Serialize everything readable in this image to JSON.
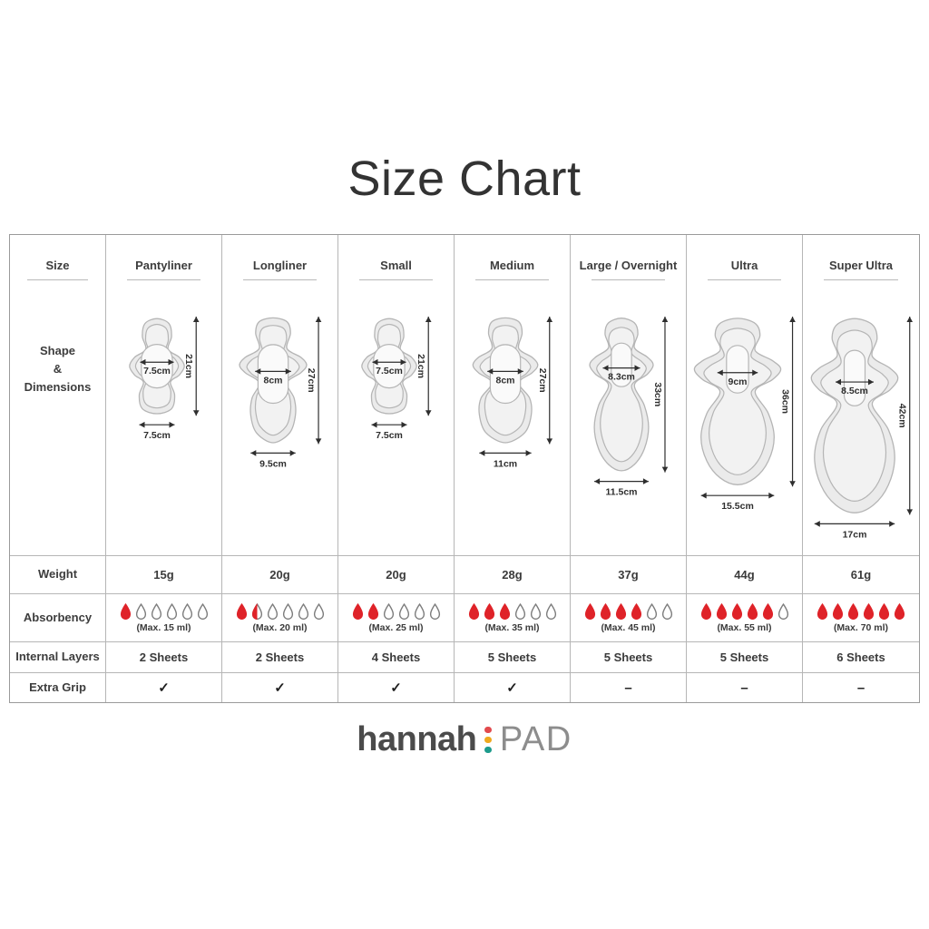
{
  "title": "Size Chart",
  "row_headers": {
    "size": "Size",
    "shape_line1": "Shape",
    "shape_line2": "&",
    "shape_line3": "Dimensions",
    "weight": "Weight",
    "absorbency": "Absorbency",
    "internal_layers": "Internal Layers",
    "extra_grip": "Extra Grip"
  },
  "drops_total": 6,
  "columns": [
    {
      "name": "Pantyliner",
      "core_width": "7.5cm",
      "length": "21cm",
      "bottom_width": "7.5cm",
      "weight": "15g",
      "drops_full": 1,
      "drops_half": 0,
      "absorbency_note": "(Max. 15 ml)",
      "internal_layers": "2 Sheets",
      "extra_grip": "✓"
    },
    {
      "name": "Longliner",
      "core_width": "8cm",
      "length": "27cm",
      "bottom_width": "9.5cm",
      "weight": "20g",
      "drops_full": 1,
      "drops_half": 1,
      "absorbency_note": "(Max. 20 ml)",
      "internal_layers": "2 Sheets",
      "extra_grip": "✓"
    },
    {
      "name": "Small",
      "core_width": "7.5cm",
      "length": "21cm",
      "bottom_width": "7.5cm",
      "weight": "20g",
      "drops_full": 2,
      "drops_half": 0,
      "absorbency_note": "(Max. 25 ml)",
      "internal_layers": "4 Sheets",
      "extra_grip": "✓"
    },
    {
      "name": "Medium",
      "core_width": "8cm",
      "length": "27cm",
      "bottom_width": "11cm",
      "weight": "28g",
      "drops_full": 3,
      "drops_half": 0,
      "absorbency_note": "(Max. 35 ml)",
      "internal_layers": "5 Sheets",
      "extra_grip": "✓"
    },
    {
      "name": "Large / Overnight",
      "core_width": "8.3cm",
      "length": "33cm",
      "bottom_width": "11.5cm",
      "weight": "37g",
      "drops_full": 4,
      "drops_half": 0,
      "absorbency_note": "(Max. 45 ml)",
      "internal_layers": "5 Sheets",
      "extra_grip": "–"
    },
    {
      "name": "Ultra",
      "core_width": "9cm",
      "length": "36cm",
      "bottom_width": "15.5cm",
      "weight": "44g",
      "drops_full": 5,
      "drops_half": 0,
      "absorbency_note": "(Max. 55 ml)",
      "internal_layers": "5 Sheets",
      "extra_grip": "–"
    },
    {
      "name": "Super Ultra",
      "core_width": "8.5cm",
      "length": "42cm",
      "bottom_width": "17cm",
      "weight": "61g",
      "drops_full": 6,
      "drops_half": 0,
      "absorbency_note": "(Max. 70 ml)",
      "internal_layers": "6 Sheets",
      "extra_grip": "–"
    }
  ],
  "logo": {
    "brand": "hannah",
    "suffix": "PAD",
    "dot_colors": [
      "#e24a4d",
      "#efa91e",
      "#1d9b8c"
    ]
  },
  "colors": {
    "drop_red": "#df2329",
    "drop_outline": "#7d7d7d",
    "pad_fill": "#ebebeb",
    "pad_stroke": "#b5b5b5",
    "arrow": "#2e2e2e",
    "grid_line": "#b6b6b6"
  }
}
